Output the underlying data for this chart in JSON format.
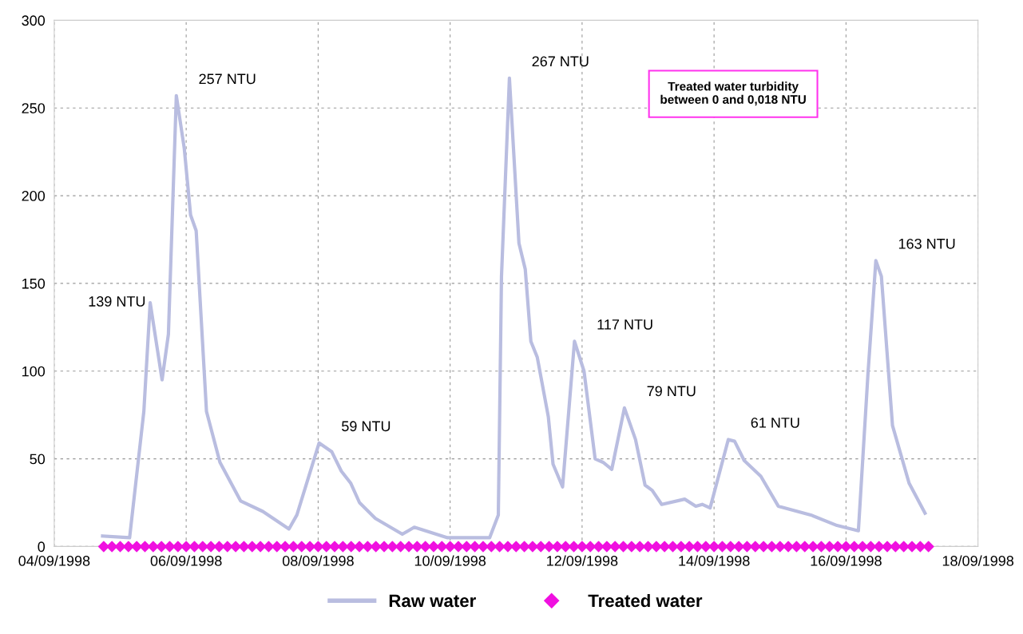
{
  "chart_data": {
    "type": "line",
    "series": [
      {
        "name": "Raw water",
        "color": "#b9bde0",
        "marker": "none",
        "line_style": "solid",
        "x": [
          "1998-09-04T17:36",
          "1998-09-05T03:25",
          "1998-09-05T08:36",
          "1998-09-05T10:54",
          "1998-09-05T15:14",
          "1998-09-05T17:32",
          "1998-09-05T20:25",
          "1998-09-05T23:18",
          "1998-09-06T01:36",
          "1998-09-06T03:38",
          "1998-09-06T07:23",
          "1998-09-06T12:17",
          "1998-09-06T19:47",
          "1998-09-07T03:52",
          "1998-09-07T13:23",
          "1998-09-07T16:16",
          "1998-09-08T00:20",
          "1998-09-08T04:58",
          "1998-09-08T08:25",
          "1998-09-08T11:53",
          "1998-09-08T15:03",
          "1998-09-08T20:49",
          "1998-09-09T06:37",
          "1998-09-09T10:58",
          "1998-09-09T23:05",
          "1998-09-10T14:22",
          "1998-09-10T17:32",
          "1998-09-10T18:41",
          "1998-09-10T21:34",
          "1998-09-11T01:02",
          "1998-09-11T03:20",
          "1998-09-11T05:22",
          "1998-09-11T07:41",
          "1998-09-11T11:43",
          "1998-09-11T13:26",
          "1998-09-11T16:54",
          "1998-09-11T21:14",
          "1998-09-12T00:42",
          "1998-09-12T04:44",
          "1998-09-12T07:37",
          "1998-09-12T10:48",
          "1998-09-12T15:24",
          "1998-09-12T19:26",
          "1998-09-12T22:54",
          "1998-09-13T01:30",
          "1998-09-13T04:58",
          "1998-09-13T13:19",
          "1998-09-13T17:22",
          "1998-09-13T19:41",
          "1998-09-13T22:34",
          "1998-09-14T05:11",
          "1998-09-14T07:29",
          "1998-09-14T10:58",
          "1998-09-14T17:01",
          "1998-09-14T23:22",
          "1998-09-15T11:11",
          "1998-09-15T20:43",
          "1998-09-16T04:30",
          "1998-09-16T07:58",
          "1998-09-16T10:51",
          "1998-09-16T12:52",
          "1998-09-16T16:54",
          "1998-09-16T22:58",
          "1998-09-17T04:44"
        ],
        "values": [
          6,
          5,
          77,
          139,
          95,
          121,
          257,
          227,
          189,
          180,
          77,
          48,
          26,
          20,
          10,
          18,
          59,
          54,
          43,
          36,
          25,
          16,
          7,
          11,
          5,
          5,
          18,
          154,
          267,
          173,
          158,
          117,
          108,
          74,
          47,
          34,
          117,
          100,
          50,
          48,
          44,
          79,
          61,
          35,
          32,
          24,
          27,
          23,
          24,
          22,
          61,
          60,
          49,
          40,
          23,
          18,
          12,
          9,
          98,
          163,
          154,
          69,
          36,
          19
        ]
      },
      {
        "name": "Treated water",
        "type": "scatter",
        "color": "#f010e0",
        "marker": "diamond",
        "x": [
          "1998-09-04T18:00",
          "1998-09-04T21:00",
          "1998-09-05T00:00",
          "1998-09-05T03:00",
          "1998-09-05T06:00",
          "1998-09-05T09:00",
          "1998-09-05T12:00",
          "1998-09-05T15:00",
          "1998-09-05T18:00",
          "1998-09-05T21:00",
          "1998-09-06T00:00",
          "1998-09-06T03:00",
          "1998-09-06T06:00",
          "1998-09-06T09:00",
          "1998-09-06T12:00",
          "1998-09-06T15:00",
          "1998-09-06T18:00",
          "1998-09-06T21:00",
          "1998-09-07T00:00",
          "1998-09-07T03:00",
          "1998-09-07T06:00",
          "1998-09-07T09:00",
          "1998-09-07T12:00",
          "1998-09-07T15:00",
          "1998-09-07T18:00",
          "1998-09-07T21:00",
          "1998-09-08T00:00",
          "1998-09-08T03:00",
          "1998-09-08T06:00",
          "1998-09-08T09:00",
          "1998-09-08T12:00",
          "1998-09-08T15:00",
          "1998-09-08T18:00",
          "1998-09-08T21:00",
          "1998-09-09T00:00",
          "1998-09-09T03:00",
          "1998-09-09T06:00",
          "1998-09-09T09:00",
          "1998-09-09T12:00",
          "1998-09-09T15:00",
          "1998-09-09T18:00",
          "1998-09-09T21:00",
          "1998-09-10T00:00",
          "1998-09-10T03:00",
          "1998-09-10T06:00",
          "1998-09-10T09:00",
          "1998-09-10T12:00",
          "1998-09-10T15:00",
          "1998-09-10T18:00",
          "1998-09-10T21:00",
          "1998-09-11T00:00",
          "1998-09-11T03:00",
          "1998-09-11T06:00",
          "1998-09-11T09:00",
          "1998-09-11T12:00",
          "1998-09-11T15:00",
          "1998-09-11T18:00",
          "1998-09-11T21:00",
          "1998-09-12T00:00",
          "1998-09-12T03:00",
          "1998-09-12T06:00",
          "1998-09-12T09:00",
          "1998-09-12T12:00",
          "1998-09-12T15:00",
          "1998-09-12T18:00",
          "1998-09-12T21:00",
          "1998-09-13T00:00",
          "1998-09-13T03:00",
          "1998-09-13T06:00",
          "1998-09-13T09:00",
          "1998-09-13T12:00",
          "1998-09-13T15:00",
          "1998-09-13T18:00",
          "1998-09-13T21:00",
          "1998-09-14T00:00",
          "1998-09-14T03:00",
          "1998-09-14T06:00",
          "1998-09-14T09:00",
          "1998-09-14T12:00",
          "1998-09-14T15:00",
          "1998-09-14T18:00",
          "1998-09-14T21:00",
          "1998-09-15T00:00",
          "1998-09-15T03:00",
          "1998-09-15T06:00",
          "1998-09-15T09:00",
          "1998-09-15T12:00",
          "1998-09-15T15:00",
          "1998-09-15T18:00",
          "1998-09-15T21:00",
          "1998-09-16T00:00",
          "1998-09-16T03:00",
          "1998-09-16T06:00",
          "1998-09-16T09:00",
          "1998-09-16T12:00",
          "1998-09-16T15:00",
          "1998-09-16T18:00",
          "1998-09-16T21:00",
          "1998-09-17T00:00",
          "1998-09-17T03:00",
          "1998-09-17T06:00"
        ],
        "values": [
          0,
          0,
          0,
          0,
          0,
          0,
          0,
          0,
          0,
          0,
          0,
          0,
          0,
          0,
          0,
          0,
          0,
          0,
          0,
          0,
          0,
          0,
          0,
          0,
          0,
          0,
          0,
          0,
          0,
          0,
          0,
          0,
          0,
          0,
          0,
          0,
          0,
          0,
          0,
          0,
          0,
          0,
          0,
          0,
          0,
          0,
          0,
          0,
          0,
          0,
          0,
          0,
          0,
          0,
          0,
          0,
          0,
          0,
          0,
          0,
          0,
          0,
          0,
          0,
          0,
          0,
          0,
          0,
          0,
          0,
          0,
          0,
          0,
          0,
          0,
          0,
          0,
          0,
          0,
          0,
          0,
          0,
          0,
          0,
          0,
          0,
          0,
          0,
          0,
          0,
          0,
          0,
          0,
          0,
          0,
          0,
          0,
          0,
          0,
          0,
          0
        ]
      }
    ],
    "xlim": [
      "1998-09-04",
      "1998-09-18"
    ],
    "xticks": [
      {
        "value": "1998-09-04",
        "label": "04/09/1998"
      },
      {
        "value": "1998-09-06",
        "label": "06/09/1998"
      },
      {
        "value": "1998-09-08",
        "label": "08/09/1998"
      },
      {
        "value": "1998-09-10",
        "label": "10/09/1998"
      },
      {
        "value": "1998-09-12",
        "label": "12/09/1998"
      },
      {
        "value": "1998-09-14",
        "label": "14/09/1998"
      },
      {
        "value": "1998-09-16",
        "label": "16/09/1998"
      },
      {
        "value": "1998-09-18",
        "label": "18/09/1998"
      }
    ],
    "ylim": [
      0,
      300
    ],
    "yticks": [
      0,
      50,
      100,
      150,
      200,
      250,
      300
    ],
    "grid": true,
    "legend": "bottom",
    "annotations": [
      {
        "text": "139 NTU",
        "x": "1998-09-05T10:54",
        "y": 139
      },
      {
        "text": "257 NTU",
        "x": "1998-09-05T20:25",
        "y": 257
      },
      {
        "text": "59 NTU",
        "x": "1998-09-08T00:20",
        "y": 59
      },
      {
        "text": "267 NTU",
        "x": "1998-09-10T21:34",
        "y": 267
      },
      {
        "text": "117 NTU",
        "x": "1998-09-11T21:14",
        "y": 117
      },
      {
        "text": "79 NTU",
        "x": "1998-09-12T15:24",
        "y": 79
      },
      {
        "text": "61 NTU",
        "x": "1998-09-14T05:11",
        "y": 61
      },
      {
        "text": "163 NTU",
        "x": "1998-09-16T10:51",
        "y": 163
      },
      "Treated water turbidity\nbetween 0 and 0,018 NTU"
    ]
  }
}
